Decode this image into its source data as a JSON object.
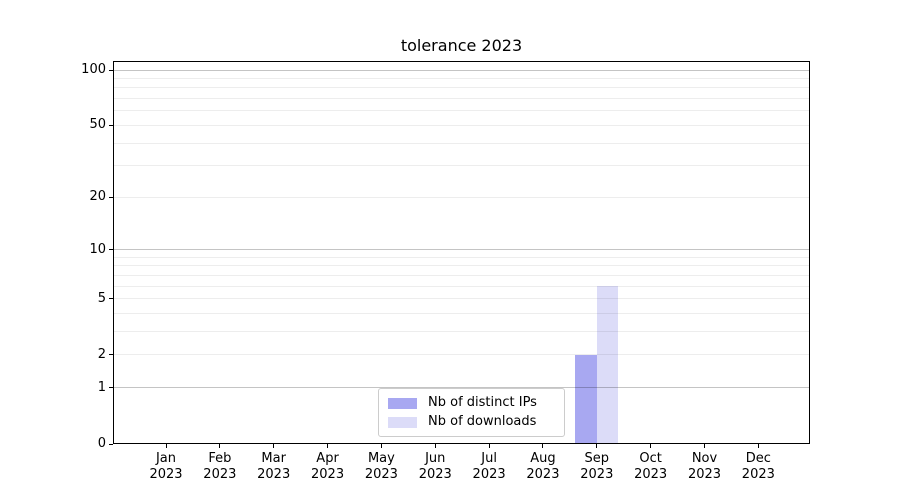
{
  "figure": {
    "title": "tolerance 2023"
  },
  "chart_data": {
    "type": "bar",
    "title": "tolerance 2023",
    "categories": [
      {
        "line1": "Jan",
        "line2": "2023"
      },
      {
        "line1": "Feb",
        "line2": "2023"
      },
      {
        "line1": "Mar",
        "line2": "2023"
      },
      {
        "line1": "Apr",
        "line2": "2023"
      },
      {
        "line1": "May",
        "line2": "2023"
      },
      {
        "line1": "Jun",
        "line2": "2023"
      },
      {
        "line1": "Jul",
        "line2": "2023"
      },
      {
        "line1": "Aug",
        "line2": "2023"
      },
      {
        "line1": "Sep",
        "line2": "2023"
      },
      {
        "line1": "Oct",
        "line2": "2023"
      },
      {
        "line1": "Nov",
        "line2": "2023"
      },
      {
        "line1": "Dec",
        "line2": "2023"
      }
    ],
    "series": [
      {
        "name": "Nb of distinct IPs",
        "color": "#a8a8f1",
        "values": [
          0,
          0,
          0,
          0,
          0,
          0,
          0,
          0,
          2,
          0,
          0,
          0
        ]
      },
      {
        "name": "Nb of downloads",
        "color": "#dcdcf8",
        "values": [
          0,
          0,
          0,
          0,
          0,
          0,
          0,
          0,
          6,
          0,
          0,
          0
        ]
      }
    ],
    "y_axis": {
      "scale": "log1p",
      "tick_values": [
        0,
        1,
        2,
        5,
        10,
        20,
        50,
        100
      ],
      "max_value": 112,
      "major_grid_values": [
        1,
        10,
        100
      ],
      "minor_grid_values": [
        2,
        3,
        4,
        5,
        6,
        7,
        8,
        9,
        20,
        30,
        40,
        50,
        60,
        70,
        80,
        90
      ]
    },
    "legend": {
      "position": "bottom-center"
    }
  },
  "colors": {
    "grid_major": "#c4c4c4",
    "grid_minor": "#ededed",
    "spine": "#000000",
    "text": "#000000",
    "legend_border": "#cccccc",
    "background": "#ffffff"
  }
}
